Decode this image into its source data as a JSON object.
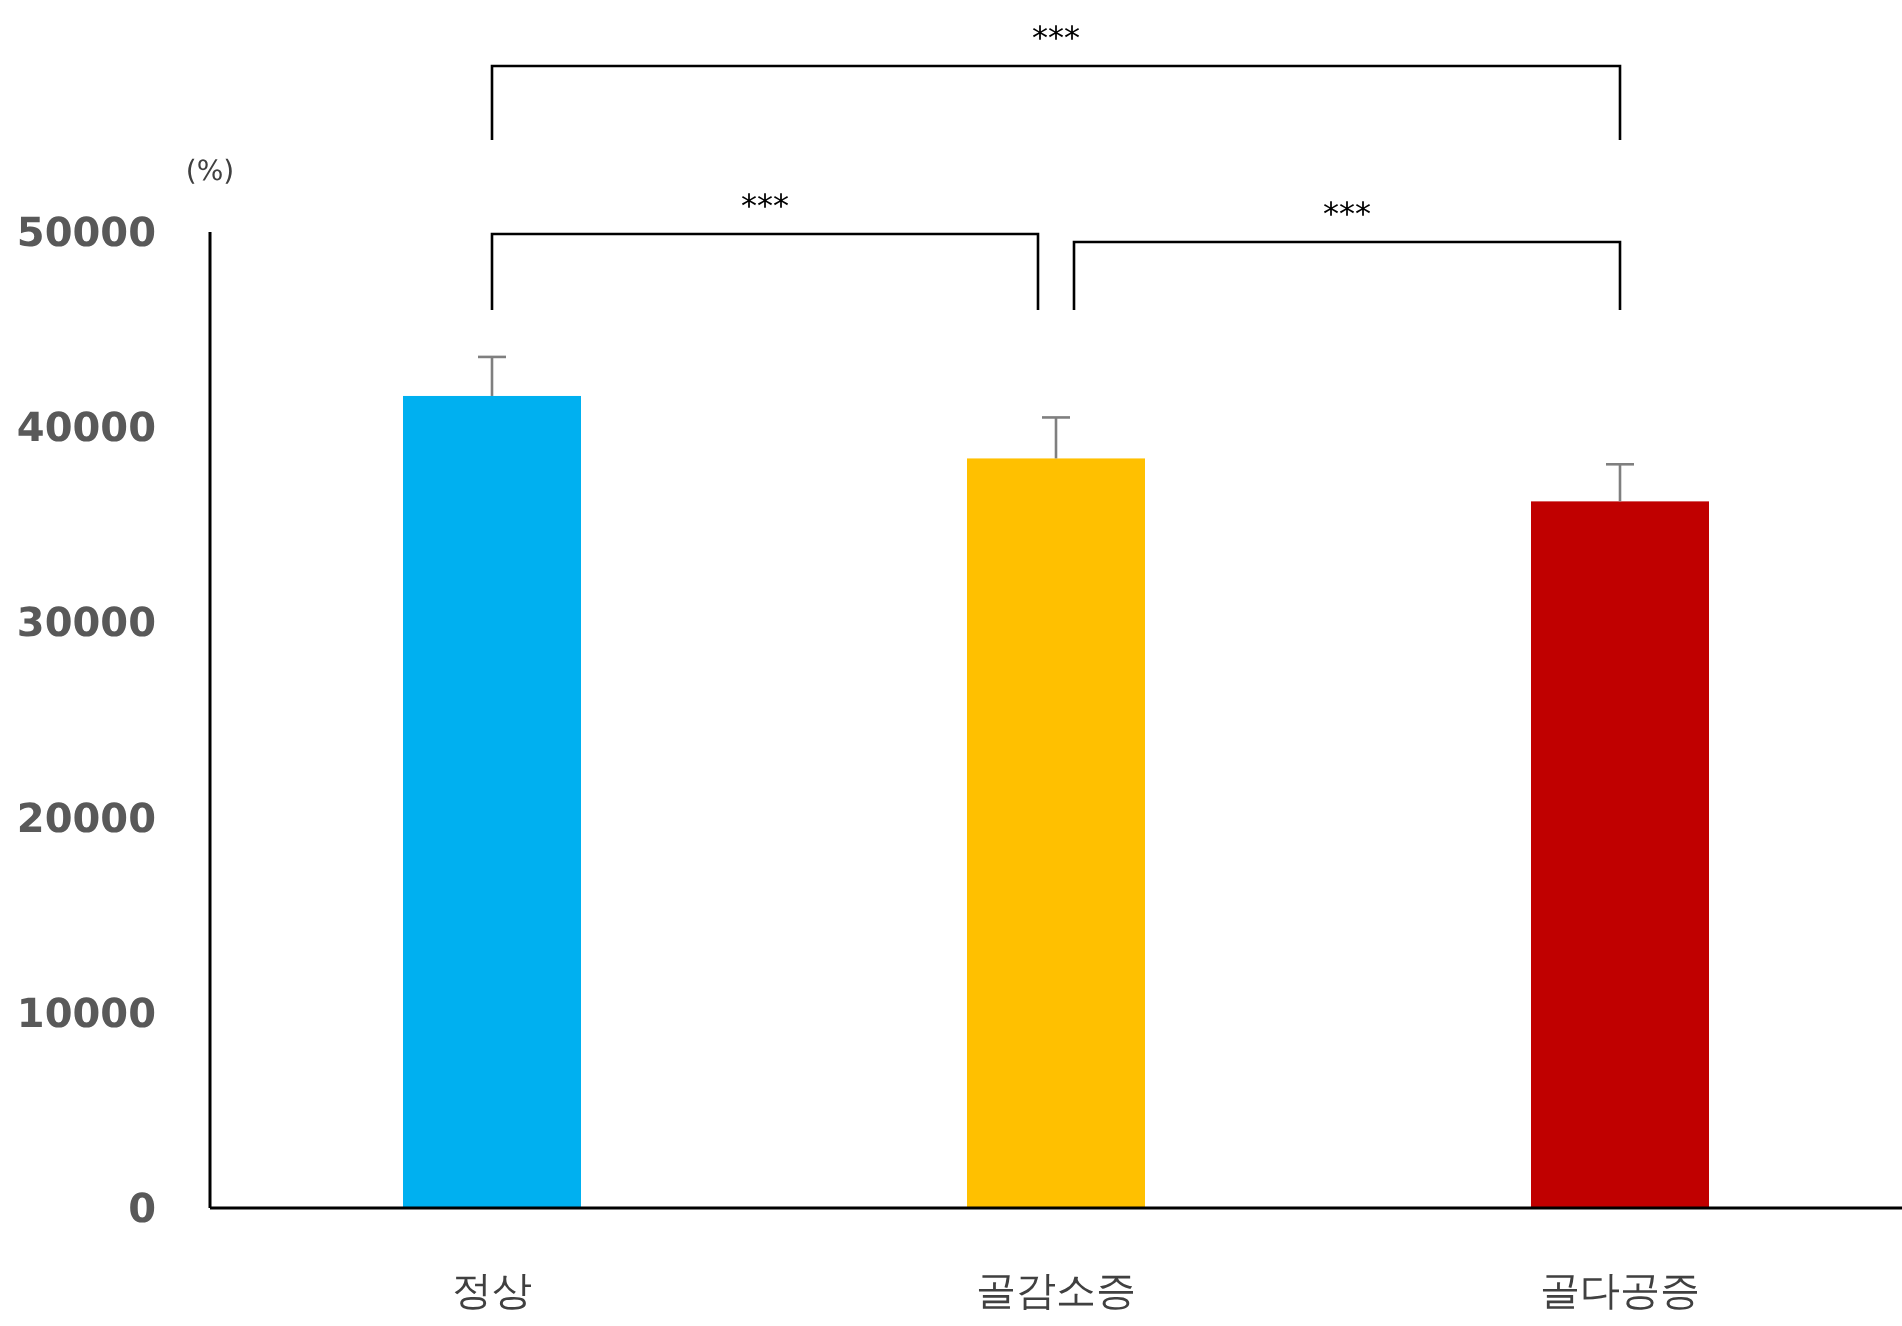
{
  "chart_data": {
    "type": "bar",
    "ylabel": "(%)",
    "categories": [
      "정상",
      "골감소증",
      "골다공증"
    ],
    "values": [
      41600,
      38400,
      36200
    ],
    "errors": [
      [
        41600,
        43600
      ],
      [
        38400,
        40500
      ],
      [
        36200,
        38100
      ]
    ],
    "colors": [
      "#00b0f0",
      "#ffc000",
      "#c00000"
    ],
    "ylim": [
      0,
      50000
    ],
    "yticks": [
      0,
      10000,
      20000,
      30000,
      40000,
      50000
    ],
    "grid": false,
    "annotations": [
      "***",
      "***",
      "***"
    ]
  }
}
